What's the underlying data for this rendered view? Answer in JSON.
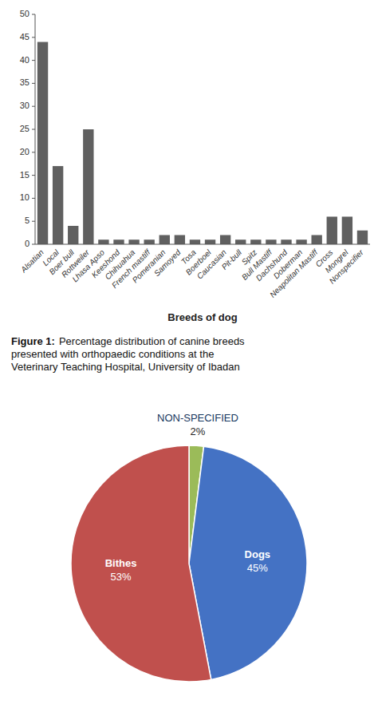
{
  "chart_data": [
    {
      "type": "bar",
      "xlabel": "Breeds of dog",
      "categories": [
        "Alsatian",
        "Local",
        "Boer bull",
        "Rottweiler",
        "Lhasa Apso",
        "Keeshond",
        "Chihuahua",
        "French mastiff",
        "Pomeranian",
        "Samoyed",
        "Tosa",
        "Boerboel",
        "Caucasian",
        "Pit-bull",
        "Spitz",
        "Bull Mastiff",
        "Dachshund",
        "Doberman",
        "Neapolitan Mastiff",
        "Cross",
        "Mongrel",
        "Nonspecifier"
      ],
      "values": [
        44,
        17,
        4,
        25,
        1,
        1,
        1,
        1,
        2,
        2,
        1,
        1,
        2,
        1,
        1,
        1,
        1,
        1,
        2,
        6,
        6,
        3
      ],
      "color": "#606060",
      "ylim": [
        0,
        50
      ],
      "yticks": [
        0,
        5,
        10,
        15,
        20,
        25,
        30,
        35,
        40,
        45,
        50
      ],
      "grid": false
    },
    {
      "type": "pie",
      "annotations": [
        "Figure 1:",
        "Percentage distribution of canine breeds\npresented with orthopaedic conditions at the\nVeterinary Teaching Hospital, University of Ibadan"
      ],
      "categories": [
        "NON-SPECIFIED",
        "Dogs",
        "Bithes"
      ],
      "values": [
        2,
        45,
        53
      ],
      "value_labels": [
        "2%",
        "45%",
        "53%"
      ],
      "colors": [
        "#9BBB59",
        "#4472C4",
        "#C0504D"
      ],
      "data_labels": true
    }
  ]
}
